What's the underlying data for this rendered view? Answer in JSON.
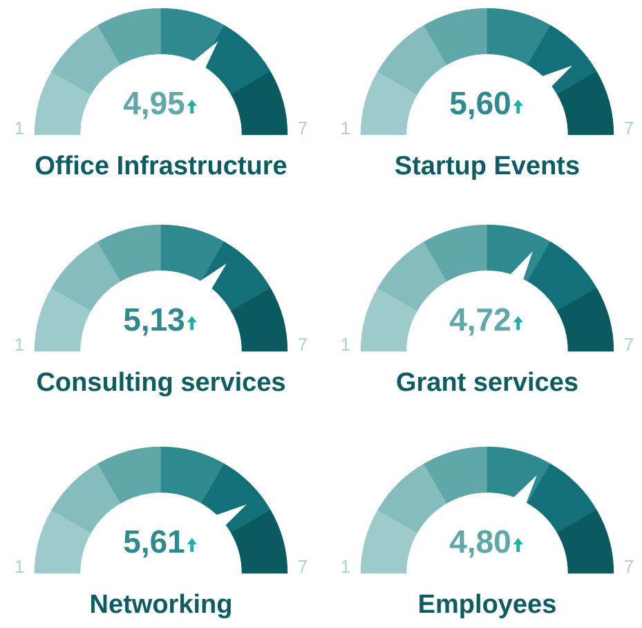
{
  "chart_data": [
    {
      "type": "gauge",
      "title": "Office Infrastructure",
      "values": [
        4.95
      ],
      "value_labels": [
        "4,95"
      ],
      "ylim": [
        1,
        7
      ],
      "yticks": [
        1,
        7
      ],
      "value_color": "#5fa7a9",
      "colors": [
        "#9dcbcb",
        "#85bdbe",
        "#5fa7a9",
        "#2e8a8f",
        "#136f78",
        "#0a5a60"
      ]
    },
    {
      "type": "gauge",
      "title": "Startup Events",
      "values": [
        5.6
      ],
      "value_labels": [
        "5,60"
      ],
      "ylim": [
        1,
        7
      ],
      "yticks": [
        1,
        7
      ],
      "value_color": "#2e8a8f",
      "colors": [
        "#9dcbcb",
        "#85bdbe",
        "#5fa7a9",
        "#2e8a8f",
        "#136f78",
        "#0a5a60"
      ]
    },
    {
      "type": "gauge",
      "title": "Consulting services",
      "values": [
        5.13
      ],
      "value_labels": [
        "5,13"
      ],
      "ylim": [
        1,
        7
      ],
      "yticks": [
        1,
        7
      ],
      "value_color": "#2e8a8f",
      "colors": [
        "#9dcbcb",
        "#85bdbe",
        "#5fa7a9",
        "#2e8a8f",
        "#136f78",
        "#0a5a60"
      ]
    },
    {
      "type": "gauge",
      "title": "Grant services",
      "values": [
        4.72
      ],
      "value_labels": [
        "4,72"
      ],
      "ylim": [
        1,
        7
      ],
      "yticks": [
        1,
        7
      ],
      "value_color": "#5fa7a9",
      "colors": [
        "#9dcbcb",
        "#85bdbe",
        "#5fa7a9",
        "#2e8a8f",
        "#136f78",
        "#0a5a60"
      ]
    },
    {
      "type": "gauge",
      "title": "Networking",
      "values": [
        5.61
      ],
      "value_labels": [
        "5,61"
      ],
      "ylim": [
        1,
        7
      ],
      "yticks": [
        1,
        7
      ],
      "value_color": "#2e8a8f",
      "colors": [
        "#9dcbcb",
        "#85bdbe",
        "#5fa7a9",
        "#2e8a8f",
        "#136f78",
        "#0a5a60"
      ]
    },
    {
      "type": "gauge",
      "title": "Employees",
      "values": [
        4.8
      ],
      "value_labels": [
        "4,80"
      ],
      "ylim": [
        1,
        7
      ],
      "yticks": [
        1,
        7
      ],
      "value_color": "#5fa7a9",
      "colors": [
        "#9dcbcb",
        "#85bdbe",
        "#5fa7a9",
        "#2e8a8f",
        "#136f78",
        "#0a5a60"
      ]
    }
  ]
}
